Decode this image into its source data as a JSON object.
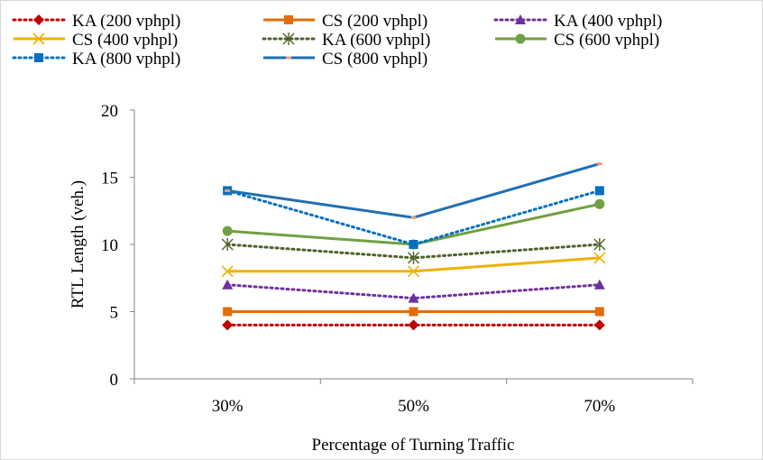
{
  "chart_data": {
    "type": "line",
    "categories": [
      "30%",
      "50%",
      "70%"
    ],
    "xlabel": "Percentage of Turning Traffic",
    "ylabel": "RTL Length (veh.)",
    "ylim": [
      0,
      20
    ],
    "yticks": [
      "0",
      "5",
      "10",
      "15",
      "20"
    ],
    "grid": false,
    "legend_position": "top",
    "series": [
      {
        "name": "KA (200 vphpl)",
        "values": [
          4,
          4,
          4
        ],
        "color": "#c00000",
        "dash": "dotted",
        "marker": "diamond"
      },
      {
        "name": "CS (200 vphpl)",
        "values": [
          5,
          5,
          5
        ],
        "color": "#e46c0a",
        "dash": "solid",
        "marker": "square"
      },
      {
        "name": "KA (400 vphpl)",
        "values": [
          7,
          6,
          7
        ],
        "color": "#7030a0",
        "dash": "dotted",
        "marker": "triangle"
      },
      {
        "name": "CS (400 vphpl)",
        "values": [
          8,
          8,
          9
        ],
        "color": "#f0b000",
        "dash": "solid",
        "marker": "x"
      },
      {
        "name": "KA (600 vphpl)",
        "values": [
          10,
          9,
          10
        ],
        "color": "#4f6228",
        "dash": "dotted",
        "marker": "star"
      },
      {
        "name": "CS (600 vphpl)",
        "values": [
          11,
          10,
          13
        ],
        "color": "#70a040",
        "dash": "solid",
        "marker": "circle"
      },
      {
        "name": "KA (800 vphpl)",
        "values": [
          14,
          10,
          14
        ],
        "color": "#0070c0",
        "dash": "dotted",
        "marker": "square"
      },
      {
        "name": "CS (800 vphpl)",
        "values": [
          14,
          12,
          16
        ],
        "color": "#1f6fb5",
        "dash": "solid",
        "marker": "dash"
      }
    ]
  }
}
